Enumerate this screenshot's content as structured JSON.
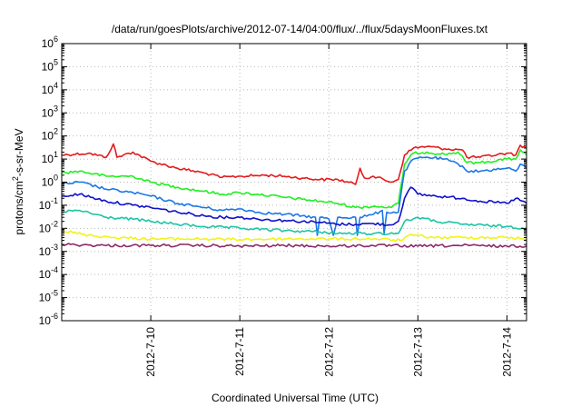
{
  "chart_data": {
    "type": "line",
    "title": "/data/run/goesPlots/archive/2012-07-14/04:00/flux/../flux/5daysMoonFluxes.txt",
    "xlabel": "Coordinated Universal Time (UTC)",
    "ylabel": {
      "pre": "protons/cm",
      "sup": "2",
      "post": "-s-sr-MeV"
    },
    "yscale": "log",
    "ylim": [
      1e-06,
      1000000.0
    ],
    "y_ticks": [
      {
        "base": "10",
        "exp": "-6"
      },
      {
        "base": "10",
        "exp": "-5"
      },
      {
        "base": "10",
        "exp": "-4"
      },
      {
        "base": "10",
        "exp": "-3"
      },
      {
        "base": "10",
        "exp": "-2"
      },
      {
        "base": "10",
        "exp": "-1"
      },
      {
        "base": "10",
        "exp": "0"
      },
      {
        "base": "10",
        "exp": "1"
      },
      {
        "base": "10",
        "exp": "2"
      },
      {
        "base": "10",
        "exp": "3"
      },
      {
        "base": "10",
        "exp": "4"
      },
      {
        "base": "10",
        "exp": "5"
      },
      {
        "base": "10",
        "exp": "6"
      }
    ],
    "x_ticks": [
      "2012-7-10",
      "2012-7-11",
      "2012-7-12",
      "2012-7-13",
      "2012-7-14"
    ],
    "x_tick_days": [
      10,
      11,
      12,
      13,
      14
    ],
    "xlim_days": [
      9.0,
      14.22
    ],
    "grid": true,
    "series": [
      {
        "color": "#e31a1c",
        "points": [
          [
            9.0,
            15
          ],
          [
            9.3,
            18
          ],
          [
            9.5,
            12
          ],
          [
            9.58,
            45
          ],
          [
            9.62,
            12
          ],
          [
            9.8,
            20
          ],
          [
            10.0,
            8
          ],
          [
            10.3,
            4
          ],
          [
            10.6,
            2.5
          ],
          [
            10.8,
            1.6
          ],
          [
            11.0,
            1.8
          ],
          [
            11.3,
            2
          ],
          [
            11.5,
            1.8
          ],
          [
            11.7,
            1.5
          ],
          [
            11.9,
            1.3
          ],
          [
            12.1,
            1.3
          ],
          [
            12.3,
            0.8
          ],
          [
            12.35,
            4
          ],
          [
            12.4,
            1.5
          ],
          [
            12.5,
            1.8
          ],
          [
            12.7,
            1.0
          ],
          [
            12.78,
            1.3
          ],
          [
            12.85,
            15
          ],
          [
            12.95,
            30
          ],
          [
            13.1,
            35
          ],
          [
            13.3,
            28
          ],
          [
            13.5,
            25
          ],
          [
            13.55,
            12
          ],
          [
            13.7,
            12
          ],
          [
            14.0,
            18
          ],
          [
            14.1,
            15
          ],
          [
            14.15,
            40
          ],
          [
            14.22,
            30
          ]
        ]
      },
      {
        "color": "#22ee22",
        "points": [
          [
            9.0,
            2.5
          ],
          [
            9.2,
            3
          ],
          [
            9.5,
            1.8
          ],
          [
            9.8,
            1.8
          ],
          [
            10.0,
            1.0
          ],
          [
            10.3,
            0.6
          ],
          [
            10.6,
            0.4
          ],
          [
            10.8,
            0.3
          ],
          [
            11.0,
            0.35
          ],
          [
            11.2,
            0.3
          ],
          [
            11.5,
            0.22
          ],
          [
            11.7,
            0.18
          ],
          [
            11.9,
            0.15
          ],
          [
            12.1,
            0.12
          ],
          [
            12.3,
            0.08
          ],
          [
            12.5,
            0.09
          ],
          [
            12.7,
            0.08
          ],
          [
            12.78,
            0.12
          ],
          [
            12.85,
            6
          ],
          [
            12.95,
            18
          ],
          [
            13.1,
            20
          ],
          [
            13.3,
            16
          ],
          [
            13.45,
            20
          ],
          [
            13.55,
            7
          ],
          [
            13.7,
            7
          ],
          [
            14.0,
            10
          ],
          [
            14.1,
            10
          ],
          [
            14.15,
            25
          ],
          [
            14.22,
            15
          ]
        ]
      },
      {
        "color": "#1a78e6",
        "points": [
          [
            9.0,
            0.8
          ],
          [
            9.2,
            1.0
          ],
          [
            9.5,
            0.5
          ],
          [
            9.8,
            0.35
          ],
          [
            10.0,
            0.25
          ],
          [
            10.3,
            0.12
          ],
          [
            10.6,
            0.08
          ],
          [
            10.8,
            0.06
          ],
          [
            11.0,
            0.07
          ],
          [
            11.2,
            0.05
          ],
          [
            11.5,
            0.04
          ],
          [
            11.7,
            0.035
          ],
          [
            11.85,
            0.03
          ],
          [
            11.87,
            0.005
          ],
          [
            11.9,
            0.03
          ],
          [
            12.0,
            0.025
          ],
          [
            12.05,
            0.005
          ],
          [
            12.1,
            0.03
          ],
          [
            12.3,
            0.03
          ],
          [
            12.32,
            0.005
          ],
          [
            12.35,
            0.03
          ],
          [
            12.5,
            0.04
          ],
          [
            12.6,
            0.06
          ],
          [
            12.62,
            0.006
          ],
          [
            12.65,
            0.05
          ],
          [
            12.78,
            0.05
          ],
          [
            12.85,
            3
          ],
          [
            12.95,
            10
          ],
          [
            13.1,
            12
          ],
          [
            13.3,
            10
          ],
          [
            13.5,
            5
          ],
          [
            13.55,
            3
          ],
          [
            13.7,
            3
          ],
          [
            14.0,
            4
          ],
          [
            14.1,
            3
          ],
          [
            14.15,
            6
          ],
          [
            14.22,
            4
          ]
        ]
      },
      {
        "color": "#1010c8",
        "points": [
          [
            9.0,
            0.25
          ],
          [
            9.2,
            0.3
          ],
          [
            9.5,
            0.15
          ],
          [
            9.8,
            0.1
          ],
          [
            10.0,
            0.08
          ],
          [
            10.3,
            0.05
          ],
          [
            10.6,
            0.035
          ],
          [
            10.8,
            0.03
          ],
          [
            11.0,
            0.03
          ],
          [
            11.2,
            0.025
          ],
          [
            11.5,
            0.022
          ],
          [
            11.7,
            0.02
          ],
          [
            11.9,
            0.018
          ],
          [
            12.1,
            0.015
          ],
          [
            12.3,
            0.015
          ],
          [
            12.5,
            0.016
          ],
          [
            12.7,
            0.014
          ],
          [
            12.78,
            0.02
          ],
          [
            12.85,
            0.2
          ],
          [
            12.92,
            0.6
          ],
          [
            13.0,
            0.3
          ],
          [
            13.2,
            0.25
          ],
          [
            13.5,
            0.2
          ],
          [
            13.7,
            0.15
          ],
          [
            14.0,
            0.12
          ],
          [
            14.1,
            0.2
          ],
          [
            14.22,
            0.12
          ]
        ]
      },
      {
        "color": "#1dc4a4",
        "points": [
          [
            9.0,
            0.05
          ],
          [
            9.2,
            0.06
          ],
          [
            9.5,
            0.03
          ],
          [
            9.8,
            0.025
          ],
          [
            10.0,
            0.02
          ],
          [
            10.3,
            0.015
          ],
          [
            10.6,
            0.012
          ],
          [
            11.0,
            0.01
          ],
          [
            11.5,
            0.008
          ],
          [
            11.9,
            0.007
          ],
          [
            12.1,
            0.006
          ],
          [
            12.5,
            0.006
          ],
          [
            12.78,
            0.006
          ],
          [
            12.85,
            0.02
          ],
          [
            13.0,
            0.03
          ],
          [
            13.2,
            0.02
          ],
          [
            13.5,
            0.015
          ],
          [
            13.8,
            0.013
          ],
          [
            14.0,
            0.012
          ],
          [
            14.22,
            0.01
          ]
        ]
      },
      {
        "color": "#f2f21a",
        "points": [
          [
            9.0,
            0.008
          ],
          [
            9.3,
            0.005
          ],
          [
            9.6,
            0.004
          ],
          [
            10.0,
            0.0035
          ],
          [
            10.5,
            0.0035
          ],
          [
            11.0,
            0.0033
          ],
          [
            11.5,
            0.0035
          ],
          [
            12.0,
            0.0035
          ],
          [
            12.5,
            0.0035
          ],
          [
            12.8,
            0.003
          ],
          [
            12.9,
            0.005
          ],
          [
            13.2,
            0.004
          ],
          [
            13.5,
            0.004
          ],
          [
            14.0,
            0.004
          ],
          [
            14.22,
            0.0035
          ]
        ]
      },
      {
        "color": "#8b2a6a",
        "points": [
          [
            9.0,
            0.002
          ],
          [
            9.5,
            0.0018
          ],
          [
            10.0,
            0.0018
          ],
          [
            10.5,
            0.0018
          ],
          [
            11.0,
            0.0017
          ],
          [
            11.5,
            0.0018
          ],
          [
            12.0,
            0.0017
          ],
          [
            12.5,
            0.0018
          ],
          [
            13.0,
            0.0017
          ],
          [
            13.5,
            0.0018
          ],
          [
            14.0,
            0.0017
          ],
          [
            14.22,
            0.0017
          ]
        ]
      }
    ]
  }
}
